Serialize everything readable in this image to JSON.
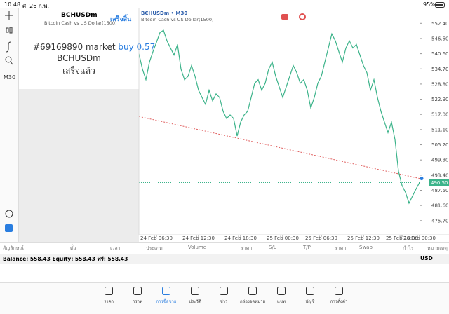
{
  "status_bar": {
    "time": "10:48",
    "date": "ศ. 26 ก.พ.",
    "battery": "95%"
  },
  "toolbar": {
    "timeframe": "M30"
  },
  "order_panel": {
    "symbol": "BCHUSDm",
    "description": "Bitcoin Cash vs US Dollar(1500)",
    "done_button": "เสร็จสิ้น",
    "order_id": "#69169890 market",
    "order_type": "buy 0.57",
    "order_symbol": "BCHUSDm",
    "status": "เสร็จแล้ว"
  },
  "chart": {
    "type": "line",
    "title": "BCHUSDm • M30",
    "subtitle": "Bitcoin Cash vs US Dollar(1500)",
    "color": "#3cb38a",
    "values": [
      540.6,
      534.6,
      530.5,
      537.3,
      541.4,
      545.0,
      548.8,
      549.7,
      545.6,
      542.8,
      540.1,
      544.2,
      534.6,
      530.5,
      531.8,
      536.0,
      531.8,
      526.4,
      523.6,
      520.9,
      526.4,
      522.3,
      525.0,
      523.6,
      518.2,
      515.4,
      516.8,
      515.4,
      508.6,
      514.0,
      516.8,
      518.2,
      523.6,
      529.1,
      530.5,
      526.4,
      529.1,
      534.6,
      537.3,
      531.8,
      527.7,
      523.6,
      527.7,
      531.8,
      536.0,
      533.2,
      529.1,
      530.5,
      526.4,
      519.5,
      523.6,
      529.1,
      531.8,
      537.3,
      542.8,
      548.3,
      545.6,
      541.4,
      537.3,
      542.8,
      545.6,
      542.8,
      544.2,
      540.1,
      536.0,
      533.2,
      526.4,
      530.5,
      523.6,
      518.2,
      514.0,
      509.9,
      514.0,
      507.2,
      494.9,
      489.4,
      486.7,
      482.5,
      485.3,
      488.0,
      490.5
    ],
    "ylim": [
      470.2,
      558.2
    ],
    "yticks": [
      {
        "value": 552.4,
        "label": "552.40"
      },
      {
        "value": 546.5,
        "label": "546.50"
      },
      {
        "value": 540.6,
        "label": "540.60"
      },
      {
        "value": 534.7,
        "label": "534.70"
      },
      {
        "value": 528.8,
        "label": "528.80"
      },
      {
        "value": 522.9,
        "label": "522.90"
      },
      {
        "value": 517,
        "label": "517.00"
      },
      {
        "value": 511.1,
        "label": "511.10"
      },
      {
        "value": 505.2,
        "label": "505.20"
      },
      {
        "value": 499.3,
        "label": "499.30"
      },
      {
        "value": 493.4,
        "label": "493.40"
      },
      {
        "value": 487.5,
        "label": "487.50"
      },
      {
        "value": 481.6,
        "label": "481.60"
      },
      {
        "value": 475.7,
        "label": "475.70"
      }
    ],
    "xticks": [
      {
        "value": 5,
        "label": "24 Feb 06:30"
      },
      {
        "value": 17,
        "label": "24 Feb 12:30"
      },
      {
        "value": 29,
        "label": "24 Feb 18:30"
      },
      {
        "value": 41,
        "label": "25 Feb 00:30"
      },
      {
        "value": 52,
        "label": "25 Feb 06:30"
      },
      {
        "value": 64,
        "label": "25 Feb 12:30"
      },
      {
        "value": 75,
        "label": "25 Feb 18:30"
      },
      {
        "value": 80,
        "label": "26 Feb 00:30"
      }
    ],
    "current_price": {
      "value": 490.5,
      "label": "490.50"
    },
    "trendline": {
      "values": [
        516.2,
        492.1
      ],
      "color": "#e06060"
    }
  },
  "positions_table": {
    "headers": [
      "สัญลักษณ์",
      "ตั๋ว",
      "เวลา",
      "ประเภท",
      "Volume",
      "ราคา",
      "S/L",
      "T/P",
      "ราคา",
      "Swap",
      "กำไร",
      "หมายเหตุ"
    ]
  },
  "account": {
    "summary": "Balance: 558.43 Equity: 558.43 ฟรี: 558.43",
    "currency": "USD"
  },
  "tabs": [
    "ราคา",
    "กราฟ",
    "การซื้อขาย",
    "ประวัติ",
    "ข่าว",
    "กล่องจดหมาย",
    "แชท",
    "บัญชี",
    "การตั้งค่า"
  ]
}
